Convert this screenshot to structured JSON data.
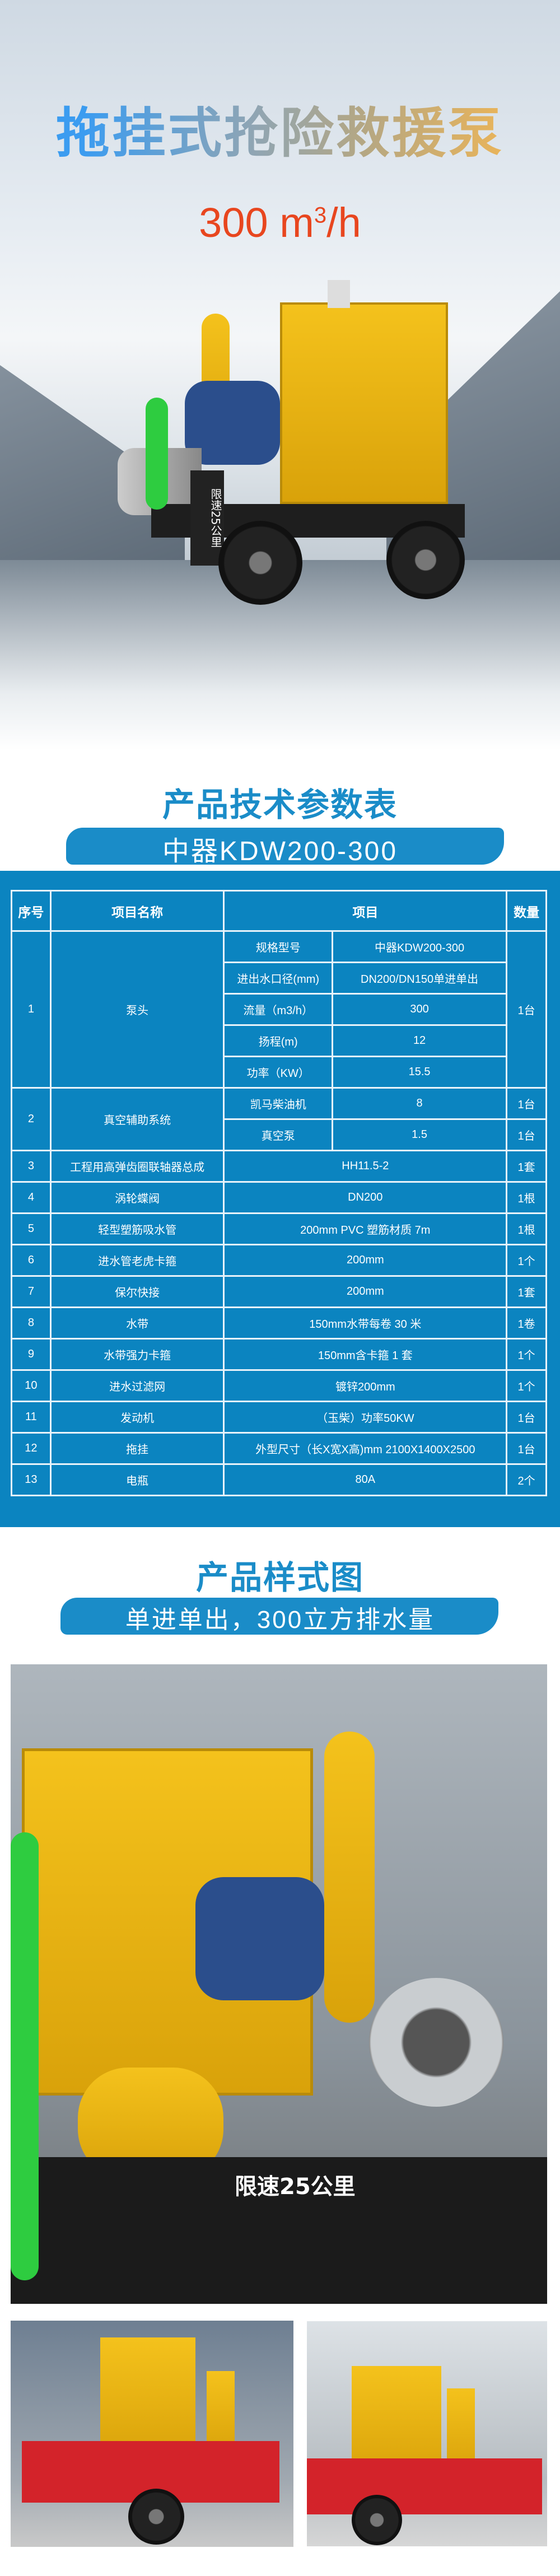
{
  "hero": {
    "title": "拖挂式抢险救援泵",
    "rate_value": "300 m",
    "rate_sup": "3",
    "rate_unit": "/h",
    "trailer_plate": "限速25公里"
  },
  "spec_section": {
    "title": "产品技术参数表",
    "model": "中器KDW200-300",
    "headers": [
      "序号",
      "项目名称",
      "项目",
      "数量"
    ],
    "pump_group": {
      "no": "1",
      "name": "泵头",
      "qty": "1台",
      "rows": [
        {
          "item": "规格型号",
          "value": "中器KDW200-300"
        },
        {
          "item": "进出水口径(mm)",
          "value": "DN200/DN150单进单出"
        },
        {
          "item": "流量（m3/h）",
          "value": "300"
        },
        {
          "item": "扬程(m)",
          "value": "12"
        },
        {
          "item": "功率（KW）",
          "value": "15.5"
        }
      ]
    },
    "vacuum_group": {
      "no": "2",
      "name": "真空辅助系统",
      "rows": [
        {
          "item": "凯马柴油机",
          "value": "8",
          "qty": "1台"
        },
        {
          "item": "真空泵",
          "value": "1.5",
          "qty": "1台"
        }
      ]
    },
    "rows": [
      {
        "no": "3",
        "name": "工程用高弹齿圈联轴器总成",
        "value": "HH11.5-2",
        "qty": "1套"
      },
      {
        "no": "4",
        "name": "涡轮蝶阀",
        "value": "DN200",
        "qty": "1根"
      },
      {
        "no": "5",
        "name": "轻型塑筋吸水管",
        "value": "200mm PVC 塑筋材质 7m",
        "qty": "1根"
      },
      {
        "no": "6",
        "name": "进水管老虎卡箍",
        "value": "200mm",
        "qty": "1个"
      },
      {
        "no": "7",
        "name": "保尔快接",
        "value": "200mm",
        "qty": "1套"
      },
      {
        "no": "8",
        "name": "水带",
        "value": "150mm水带每卷 30 米",
        "qty": "1卷"
      },
      {
        "no": "9",
        "name": "水带强力卡箍",
        "value": "150mm含卡箍 1 套",
        "qty": "1个"
      },
      {
        "no": "10",
        "name": "进水过滤网",
        "value": "镀锌200mm",
        "qty": "1个"
      },
      {
        "no": "11",
        "name": "发动机",
        "value": "（玉柴）功率50KW",
        "qty": "1台"
      },
      {
        "no": "12",
        "name": "拖挂",
        "value": "外型尺寸（长X宽X高)mm 2100X1400X2500",
        "qty": "1台"
      },
      {
        "no": "13",
        "name": "电瓶",
        "value": "80A",
        "qty": "2个"
      }
    ]
  },
  "style_section": {
    "title": "产品样式图",
    "subtitle": "单进单出，300立方排水量",
    "photo_plate": "限速25公里"
  },
  "colors": {
    "brand_blue": "#1a8cc8",
    "table_bg": "#0b84c0",
    "rate_orange": "#e8461f",
    "pump_yellow": "#f4c21c"
  }
}
